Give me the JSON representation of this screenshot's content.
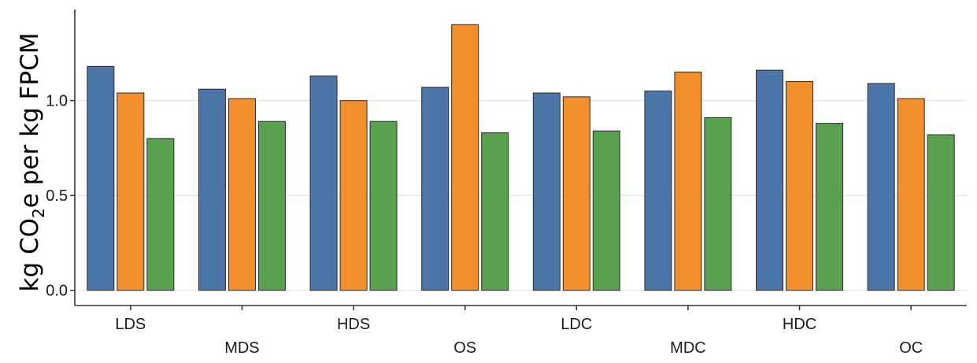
{
  "chart_data": {
    "type": "bar",
    "categories": [
      "LDS",
      "MDS",
      "HDS",
      "OS",
      "LDC",
      "MDC",
      "HDC",
      "OC"
    ],
    "series": [
      {
        "values": [
          1.18,
          1.06,
          1.13,
          1.07,
          1.04,
          1.05,
          1.16,
          1.09
        ],
        "color": "#4c76a7"
      },
      {
        "values": [
          1.04,
          1.01,
          1.0,
          1.4,
          1.02,
          1.15,
          1.1,
          1.01
        ],
        "color": "#f28e2b"
      },
      {
        "values": [
          0.8,
          0.89,
          0.89,
          0.83,
          0.84,
          0.91,
          0.88,
          0.82
        ],
        "color": "#59a14f"
      }
    ],
    "ylabel": {
      "prefix": "kg CO",
      "subscript": "2",
      "suffix": "e per kg FPCM"
    },
    "yticks": [
      "0.0",
      "0.5",
      "1.0"
    ],
    "ylim": [
      -0.08,
      1.48
    ],
    "grid": "horizontal",
    "legend": "none"
  }
}
